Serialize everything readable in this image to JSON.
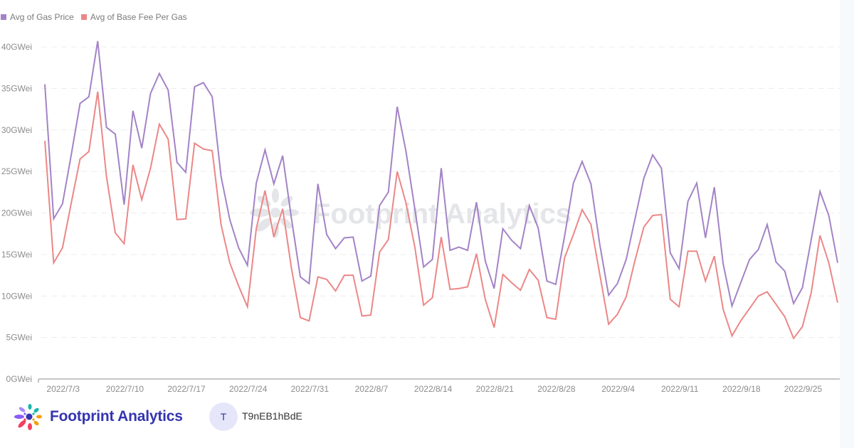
{
  "legend": [
    {
      "label": "Avg of Gas Price",
      "color": "#a383c6"
    },
    {
      "label": "Avg of Base Fee Per Gas",
      "color": "#ec8787"
    }
  ],
  "watermark": "Footprint Analytics",
  "footer": {
    "brand": "Footprint Analytics",
    "avatar_initial": "T",
    "username": "T9nEB1hBdE"
  },
  "chart_data": {
    "type": "line",
    "title": "",
    "xlabel": "",
    "ylabel": "",
    "ylim": [
      0,
      40
    ],
    "y_ticks": [
      "0GWei",
      "5GWei",
      "10GWei",
      "15GWei",
      "20GWei",
      "25GWei",
      "30GWei",
      "35GWei",
      "40GWei"
    ],
    "x_ticks": [
      "2022/7/3",
      "2022/7/10",
      "2022/7/17",
      "2022/7/24",
      "2022/7/31",
      "2022/8/7",
      "2022/8/14",
      "2022/8/21",
      "2022/8/28",
      "2022/9/4",
      "2022/9/11",
      "2022/9/18",
      "2022/9/25"
    ],
    "grid": true,
    "legend_position": "top-left",
    "x_start": "2022/7/1",
    "x_end": "2022/9/30",
    "series": [
      {
        "name": "Avg of Gas Price",
        "color": "#a383c6",
        "values": [
          35.5,
          19.3,
          21.1,
          27.0,
          33.2,
          34.0,
          40.7,
          30.3,
          29.5,
          21.0,
          32.3,
          27.8,
          34.4,
          36.8,
          34.8,
          26.1,
          24.9,
          35.2,
          35.7,
          34.0,
          24.4,
          19.2,
          15.8,
          13.7,
          23.6,
          27.6,
          23.5,
          26.9,
          19.3,
          12.3,
          11.5,
          23.5,
          17.4,
          15.7,
          17.0,
          17.1,
          11.8,
          12.4,
          20.9,
          22.5,
          32.8,
          27.4,
          20.5,
          13.5,
          14.4,
          25.4,
          15.5,
          15.9,
          15.5,
          21.3,
          14.2,
          10.9,
          18.1,
          16.7,
          15.7,
          20.9,
          18.2,
          11.8,
          11.4,
          17.2,
          23.6,
          26.2,
          23.5,
          16.2,
          10.1,
          11.5,
          14.4,
          19.3,
          24.2,
          27.0,
          25.4,
          15.2,
          13.3,
          21.4,
          23.6,
          17.0,
          23.1,
          13.9,
          8.8,
          11.6,
          14.4,
          15.6,
          18.6,
          14.1,
          13.0,
          9.1,
          11.0,
          16.8,
          22.6,
          19.7,
          14.0
        ]
      },
      {
        "name": "Avg of Base Fee Per Gas",
        "color": "#ec8787",
        "values": [
          28.7,
          14.0,
          15.8,
          21.2,
          26.5,
          27.4,
          34.6,
          24.4,
          17.6,
          16.3,
          25.8,
          21.6,
          25.4,
          30.7,
          28.9,
          19.2,
          19.3,
          28.4,
          27.7,
          27.5,
          18.6,
          14.0,
          11.2,
          8.7,
          18.1,
          22.7,
          17.1,
          20.5,
          13.3,
          7.4,
          7.0,
          12.3,
          12.0,
          10.6,
          12.5,
          12.5,
          7.6,
          7.7,
          15.3,
          16.8,
          25.0,
          21.2,
          15.9,
          8.9,
          9.8,
          17.1,
          10.8,
          10.9,
          11.1,
          15.1,
          9.6,
          6.2,
          12.6,
          11.6,
          10.7,
          13.2,
          11.9,
          7.4,
          7.2,
          14.6,
          17.4,
          20.4,
          18.6,
          12.6,
          6.6,
          7.8,
          9.9,
          14.3,
          18.3,
          19.7,
          19.8,
          9.6,
          8.7,
          15.4,
          15.4,
          11.8,
          14.8,
          8.4,
          5.2,
          7.0,
          8.5,
          10.0,
          10.5,
          9.0,
          7.5,
          4.9,
          6.3,
          10.4,
          17.3,
          14.0,
          9.2
        ]
      }
    ]
  }
}
